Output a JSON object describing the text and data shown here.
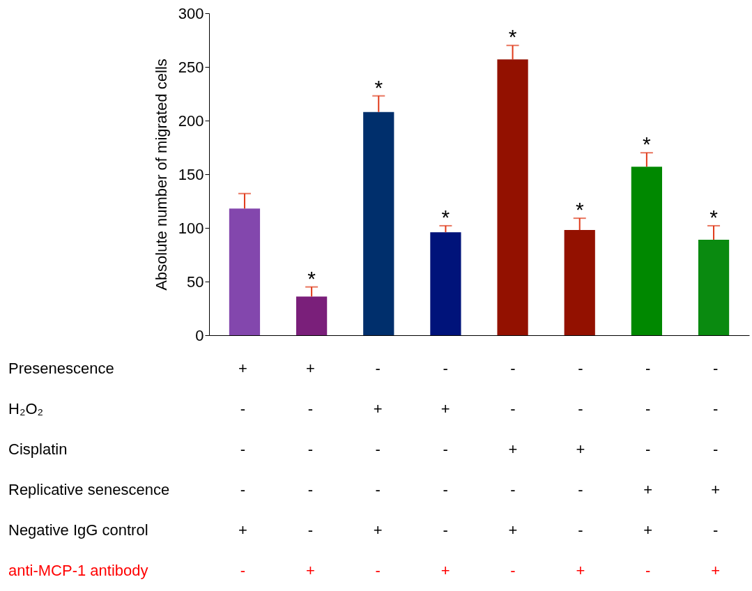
{
  "chart_data": {
    "type": "bar",
    "ylabel": "Absolute number of migrated cells",
    "categories": [
      null,
      null,
      null,
      null,
      null,
      null,
      null,
      null
    ],
    "values": [
      118,
      36,
      208,
      96,
      257,
      98,
      157,
      89
    ],
    "colors": [
      "#8347ad",
      "#7a1f7a",
      "#002f6c",
      "#00137a",
      "#931100",
      "#931100",
      "#008800",
      "#0a8a10"
    ],
    "errors": [
      [
        118,
        132
      ],
      [
        36,
        45
      ],
      [
        208,
        223
      ],
      [
        96,
        102
      ],
      [
        257,
        270
      ],
      [
        98,
        109
      ],
      [
        157,
        170
      ],
      [
        89,
        102
      ]
    ],
    "value_labels": [
      null,
      "*",
      "*",
      "*",
      "*",
      "*",
      "*",
      "*"
    ],
    "ylim": [
      0,
      300
    ],
    "yticks": [
      0,
      50,
      100,
      150,
      200,
      250,
      300
    ],
    "grid": false,
    "tick_labels": "y",
    "annotations": [
      "Presenescence",
      "+",
      "+",
      "-",
      "-",
      "-",
      "-",
      "-",
      "-",
      "H₂O₂",
      "-",
      "-",
      "+",
      "+",
      "-",
      "-",
      "-",
      "-",
      "Cisplatin",
      "-",
      "-",
      "-",
      "-",
      "+",
      "+",
      "-",
      "-",
      "Replicative senescence",
      "-",
      "-",
      "-",
      "-",
      "-",
      "-",
      "+",
      "+",
      "Negative IgG control",
      "+",
      "-",
      "+",
      "-",
      "+",
      "-",
      "+",
      "-",
      "anti-MCP-1 antibody",
      "-",
      "+",
      "-",
      "+",
      "-",
      "+",
      "-",
      "+"
    ]
  }
}
